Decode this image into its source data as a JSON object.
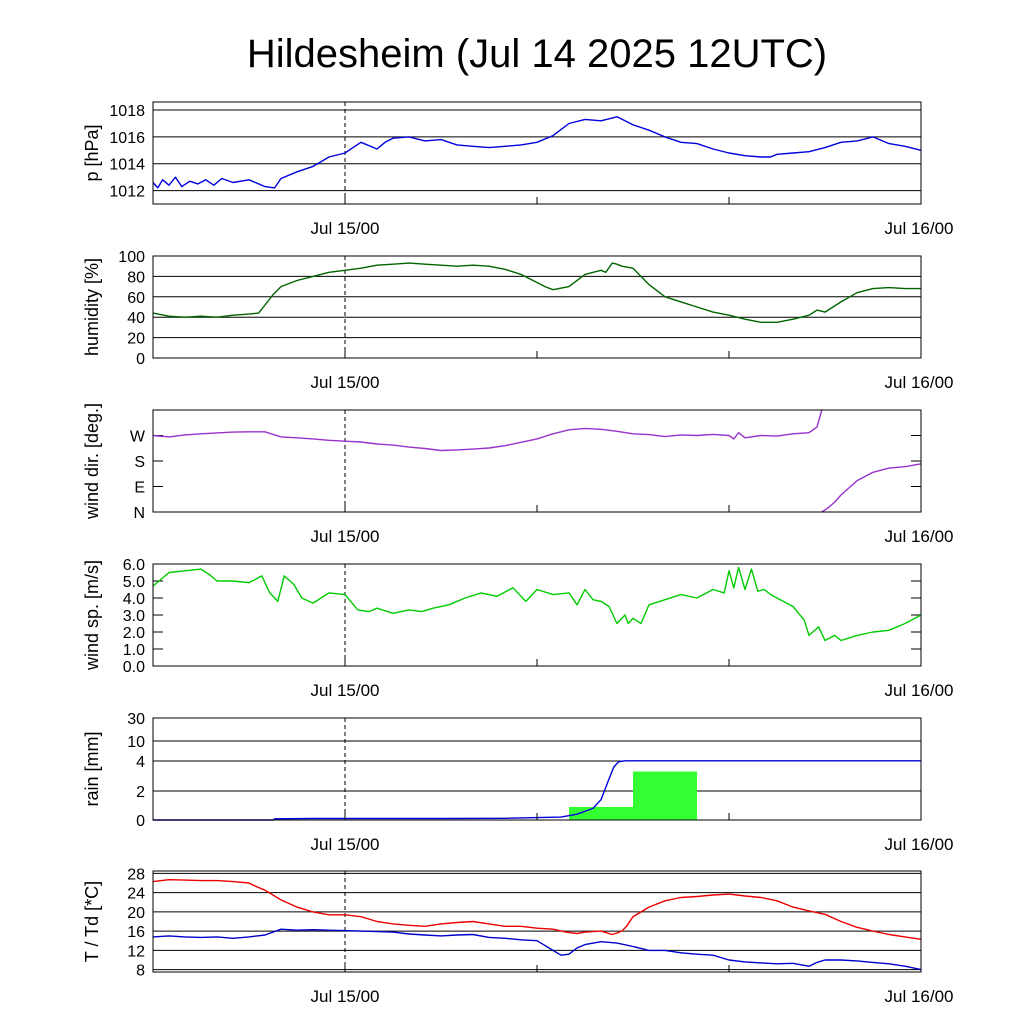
{
  "title": "Hildesheim (Jul 14 2025 12UTC)",
  "x_tick_labels": [
    "Jul 15/00",
    "Jul 16/00"
  ],
  "chart_data": [
    {
      "id": "pressure",
      "type": "line",
      "ylabel": "p [hPa]",
      "ylim": [
        1011,
        1018.6
      ],
      "yticks": [
        1012,
        1014,
        1016,
        1018
      ],
      "ytick_labels": [
        "1012",
        "1014",
        "1016",
        "1018"
      ],
      "grid": true,
      "x_unit": "hours since Jul 14 12UTC",
      "series": [
        {
          "color": "#0000dd",
          "x": [
            0,
            0.3,
            0.6,
            1,
            1.4,
            1.8,
            2.3,
            2.8,
            3.3,
            3.8,
            4.3,
            5,
            6,
            7,
            7.6,
            8,
            9,
            10,
            11,
            12,
            12.5,
            13,
            14,
            14.5,
            15,
            16,
            17,
            18,
            19,
            20,
            21,
            22,
            23,
            24,
            25,
            26,
            27,
            28,
            29,
            30,
            31,
            32,
            33,
            34,
            35,
            36,
            37,
            38,
            38.6,
            39,
            40,
            41,
            42,
            43,
            44,
            45,
            46,
            47,
            48
          ],
          "y": [
            1012.6,
            1012.2,
            1012.8,
            1012.4,
            1013.0,
            1012.3,
            1012.7,
            1012.5,
            1012.8,
            1012.4,
            1012.9,
            1012.6,
            1012.8,
            1012.3,
            1012.2,
            1012.9,
            1013.4,
            1013.8,
            1014.5,
            1014.8,
            1015.2,
            1015.6,
            1015.1,
            1015.6,
            1015.9,
            1016.0,
            1015.7,
            1015.8,
            1015.4,
            1015.3,
            1015.2,
            1015.3,
            1015.4,
            1015.6,
            1016.1,
            1017.0,
            1017.3,
            1017.2,
            1017.5,
            1016.9,
            1016.5,
            1016.0,
            1015.6,
            1015.5,
            1015.1,
            1014.8,
            1014.6,
            1014.5,
            1014.5,
            1014.7,
            1014.8,
            1014.9,
            1015.2,
            1015.6,
            1015.7,
            1016.0,
            1015.5,
            1015.3,
            1015.0
          ]
        }
      ]
    },
    {
      "id": "humidity",
      "type": "line",
      "ylabel": "humidity [%]",
      "ylim": [
        0,
        100
      ],
      "yticks": [
        0,
        20,
        40,
        60,
        80,
        100
      ],
      "ytick_labels": [
        "0",
        "20",
        "40",
        "60",
        "80",
        "100"
      ],
      "grid": true,
      "series": [
        {
          "color": "#006400",
          "x": [
            0,
            1,
            2,
            3,
            4,
            5,
            6,
            6.6,
            7,
            7.5,
            8,
            9,
            10,
            11,
            12,
            13,
            14,
            15,
            16,
            17,
            18,
            19,
            20,
            21,
            22,
            23,
            24,
            24.5,
            25,
            26,
            27,
            28,
            28.3,
            28.7,
            29,
            29.3,
            30,
            31,
            32,
            33,
            34,
            35,
            36,
            37,
            38,
            39,
            40,
            41,
            41.5,
            42,
            43,
            44,
            45,
            46,
            47,
            48
          ],
          "y": [
            44,
            41,
            40,
            41,
            40,
            42,
            43,
            44,
            52,
            62,
            70,
            76,
            80,
            84,
            86,
            88,
            91,
            92,
            93,
            92,
            91,
            90,
            91,
            90,
            87,
            82,
            74,
            70,
            67,
            70,
            82,
            86,
            84,
            93,
            92,
            90,
            88,
            72,
            60,
            55,
            50,
            45,
            42,
            38,
            35,
            35,
            38,
            42,
            47,
            45,
            55,
            64,
            68,
            69,
            68,
            68
          ]
        }
      ]
    },
    {
      "id": "wind_direction",
      "type": "line",
      "ylabel": "wind dir. [deg.]",
      "ylim": [
        0,
        360
      ],
      "yticks": [
        0,
        90,
        180,
        270
      ],
      "ytick_labels": [
        "N",
        "E",
        "S",
        "W"
      ],
      "grid": false,
      "series": [
        {
          "color": "#9933cc",
          "x": [
            0,
            1,
            2,
            3,
            4,
            5,
            6,
            7,
            8,
            9,
            10,
            11,
            12,
            13,
            14,
            15,
            16,
            17,
            18,
            19,
            20,
            21,
            22,
            23,
            24,
            25,
            26,
            27,
            28,
            29,
            30,
            31,
            32,
            33,
            34,
            35,
            36,
            36.3,
            36.6,
            37,
            38,
            39,
            40,
            41,
            41.5,
            41.8
          ],
          "y": [
            270,
            265,
            272,
            276,
            279,
            282,
            283,
            283,
            265,
            262,
            258,
            253,
            250,
            247,
            240,
            236,
            229,
            224,
            217,
            219,
            222,
            226,
            234,
            246,
            258,
            276,
            290,
            295,
            292,
            285,
            276,
            273,
            266,
            272,
            270,
            274,
            270,
            258,
            280,
            262,
            270,
            268,
            276,
            280,
            300,
            360
          ]
        },
        {
          "color": "#9933cc",
          "x": [
            41.8,
            42.2,
            42.6,
            43,
            43.5,
            44,
            45,
            46,
            47,
            48
          ],
          "y": [
            0,
            15,
            35,
            60,
            85,
            110,
            140,
            155,
            160,
            170
          ]
        }
      ]
    },
    {
      "id": "wind_speed",
      "type": "line",
      "ylabel": "wind sp. [m/s]",
      "ylim": [
        0,
        6
      ],
      "yticks": [
        0,
        1,
        2,
        3,
        4,
        5,
        6
      ],
      "ytick_labels": [
        "0.0",
        "1.0",
        "2.0",
        "3.0",
        "4.0",
        "5.0",
        "6.0"
      ],
      "grid": false,
      "series": [
        {
          "color": "#00cc00",
          "x": [
            0,
            1,
            2,
            3,
            3.5,
            4,
            5,
            6,
            6.8,
            7.3,
            7.8,
            8.2,
            8.8,
            9.3,
            10,
            11,
            12,
            12.8,
            13.5,
            14,
            15,
            16,
            16.8,
            17.5,
            18.5,
            19.5,
            20.5,
            21.5,
            22.5,
            23.3,
            24,
            25,
            26,
            26.5,
            27,
            27.5,
            28,
            28.5,
            29,
            29.5,
            29.7,
            30,
            30.5,
            31,
            32,
            33,
            34,
            35,
            35.7,
            36,
            36.3,
            36.6,
            37,
            37.4,
            37.8,
            38.2,
            38.6,
            39,
            40,
            40.7,
            41,
            41.6,
            42,
            42.6,
            43,
            44,
            45,
            46,
            47,
            48
          ],
          "y": [
            4.7,
            5.5,
            5.6,
            5.7,
            5.4,
            5.0,
            5.0,
            4.9,
            5.3,
            4.3,
            3.8,
            5.3,
            4.8,
            4.0,
            3.7,
            4.3,
            4.2,
            3.3,
            3.2,
            3.4,
            3.1,
            3.3,
            3.2,
            3.4,
            3.6,
            4.0,
            4.3,
            4.1,
            4.6,
            3.8,
            4.5,
            4.2,
            4.3,
            3.6,
            4.5,
            3.9,
            3.8,
            3.5,
            2.5,
            3.0,
            2.5,
            2.8,
            2.5,
            3.6,
            3.9,
            4.2,
            4.0,
            4.5,
            4.3,
            5.6,
            4.6,
            5.8,
            4.5,
            5.7,
            4.4,
            4.5,
            4.2,
            4.0,
            3.5,
            2.7,
            1.8,
            2.3,
            1.5,
            1.8,
            1.5,
            1.8,
            2.0,
            2.1,
            2.5,
            3.0
          ]
        }
      ]
    },
    {
      "id": "rain",
      "type": "bar+line",
      "ylabel": "rain [mm]",
      "ylim": [
        0,
        30
      ],
      "yticks": [
        0,
        2,
        4,
        10,
        30
      ],
      "ytick_labels": [
        "0",
        "2",
        "4",
        "10",
        "30"
      ],
      "grid": true,
      "scale": "custom nonlinear",
      "bars": {
        "color": "#33ff33",
        "items": [
          {
            "x_start": 26,
            "x_end": 30,
            "value": 0.9
          },
          {
            "x_start": 30,
            "x_end": 34,
            "value": 3.3
          }
        ]
      },
      "series": [
        {
          "name": "accumulated",
          "color": "#0000dd",
          "x": [
            0,
            7.5,
            7.6,
            10,
            14,
            18,
            22,
            25.5,
            26.5,
            27.5,
            28,
            28.5,
            28.8,
            29.1,
            29.5,
            31,
            34,
            40,
            48
          ],
          "y": [
            0,
            0,
            0.08,
            0.1,
            0.1,
            0.1,
            0.12,
            0.2,
            0.4,
            0.8,
            1.4,
            2.8,
            3.6,
            3.95,
            4.05,
            4.05,
            4.05,
            4.05,
            4.05
          ]
        }
      ]
    },
    {
      "id": "temperature",
      "type": "line",
      "ylabel": "T / Td [*C]",
      "ylim": [
        7.5,
        28.5
      ],
      "yticks": [
        8,
        12,
        16,
        20,
        24,
        28
      ],
      "ytick_labels": [
        "8",
        "12",
        "16",
        "20",
        "24",
        "28"
      ],
      "grid": true,
      "series": [
        {
          "color": "#ee0000",
          "x": [
            0,
            1,
            2,
            3,
            4,
            5,
            6,
            6.5,
            7,
            8,
            9,
            10,
            11,
            12,
            13,
            14,
            15,
            16,
            17,
            18,
            19,
            20,
            21,
            22,
            23,
            24,
            25,
            25.8,
            26.5,
            27,
            28,
            28.7,
            29,
            29.3,
            29.6,
            30,
            31,
            32,
            33,
            34,
            35,
            36,
            37,
            38,
            39,
            40,
            41,
            42,
            43,
            44,
            45,
            46,
            47,
            48
          ],
          "y": [
            26.3,
            26.7,
            26.6,
            26.5,
            26.5,
            26.3,
            26.0,
            25.2,
            24.5,
            22.5,
            21.0,
            20.0,
            19.4,
            19.4,
            19.0,
            18.0,
            17.5,
            17.2,
            17.0,
            17.5,
            17.8,
            18.0,
            17.5,
            17.0,
            17.0,
            16.6,
            16.4,
            15.8,
            15.5,
            15.8,
            16.0,
            15.3,
            15.6,
            16.0,
            17.0,
            19.0,
            21.0,
            22.3,
            23.0,
            23.2,
            23.5,
            23.7,
            23.3,
            23.0,
            22.3,
            21.0,
            20.2,
            19.5,
            18.0,
            16.8,
            16.0,
            15.3,
            14.8,
            14.3
          ]
        },
        {
          "color": "#0000cc",
          "x": [
            0,
            1,
            2,
            3,
            4,
            5,
            6,
            7,
            8,
            9,
            10,
            11,
            12,
            13,
            14,
            15,
            16,
            17,
            18,
            19,
            20,
            21,
            22,
            23,
            24,
            25,
            25.5,
            26,
            26.5,
            27,
            28,
            29,
            30,
            31,
            32,
            33,
            34,
            35,
            36,
            37,
            38,
            39,
            40,
            40.5,
            41,
            41.5,
            42,
            43,
            44,
            45,
            46,
            47,
            48
          ],
          "y": [
            14.8,
            15.0,
            14.8,
            14.7,
            14.8,
            14.5,
            14.8,
            15.2,
            16.4,
            16.2,
            16.3,
            16.2,
            16.1,
            16.0,
            15.9,
            15.8,
            15.4,
            15.2,
            15.0,
            15.2,
            15.3,
            14.7,
            14.5,
            14.2,
            14.0,
            12.0,
            11.0,
            11.2,
            12.5,
            13.2,
            13.8,
            13.5,
            12.8,
            12.0,
            12.0,
            11.5,
            11.2,
            11.0,
            10.0,
            9.6,
            9.4,
            9.2,
            9.3,
            9.0,
            8.7,
            9.5,
            10.0,
            10.0,
            9.8,
            9.5,
            9.2,
            8.7,
            8.0
          ]
        }
      ]
    }
  ]
}
